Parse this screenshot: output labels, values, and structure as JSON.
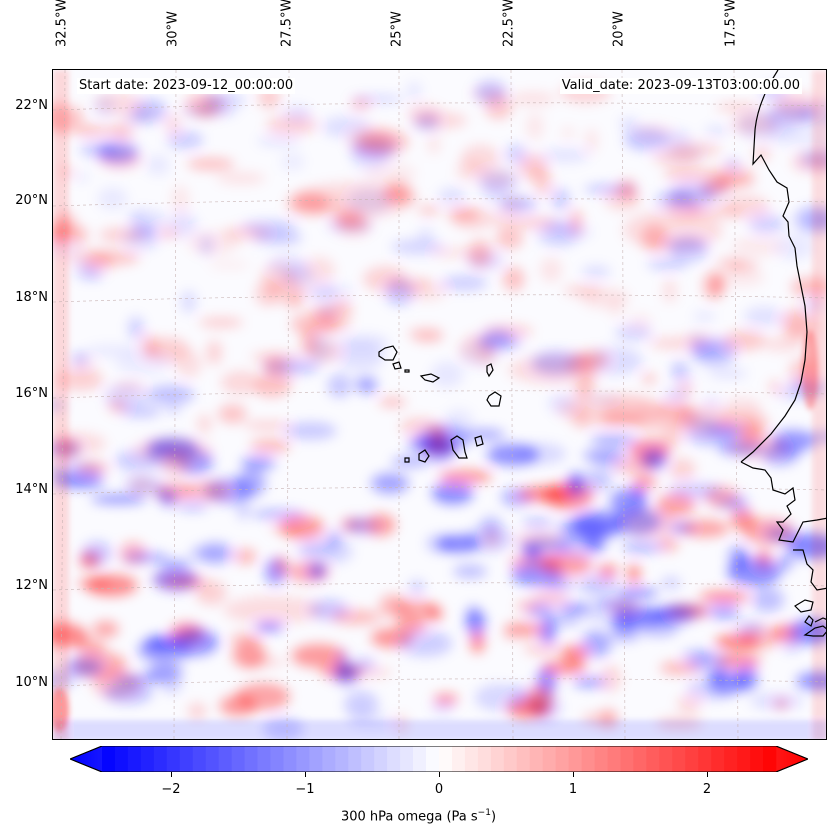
{
  "map": {
    "header": {
      "start_date": "Start date: 2023-09-12_00:00:00",
      "valid_date": "Valid_date: 2023-09-13T03:00:00.00"
    },
    "lon_labels": [
      "32.5°W",
      "30°W",
      "27.5°W",
      "25°W",
      "22.5°W",
      "20°W",
      "17.5°W"
    ],
    "lat_labels": [
      "22°N",
      "20°N",
      "18°N",
      "16°N",
      "14°N",
      "12°N",
      "10°N"
    ],
    "field": "300 hPa omega",
    "colorbar": {
      "label": "300 hPa omega (Pa s",
      "label_exp": "−1",
      "label_close": ")",
      "ticks": [
        "−2",
        "−1",
        "0",
        "1",
        "2"
      ],
      "vmin": -2.6,
      "vmax": 2.6
    },
    "colors": {
      "negative": "#0000ff",
      "zero": "#ffffff",
      "positive": "#ff0000",
      "coastline": "#000000",
      "gridline": "#c8b4b4"
    }
  }
}
